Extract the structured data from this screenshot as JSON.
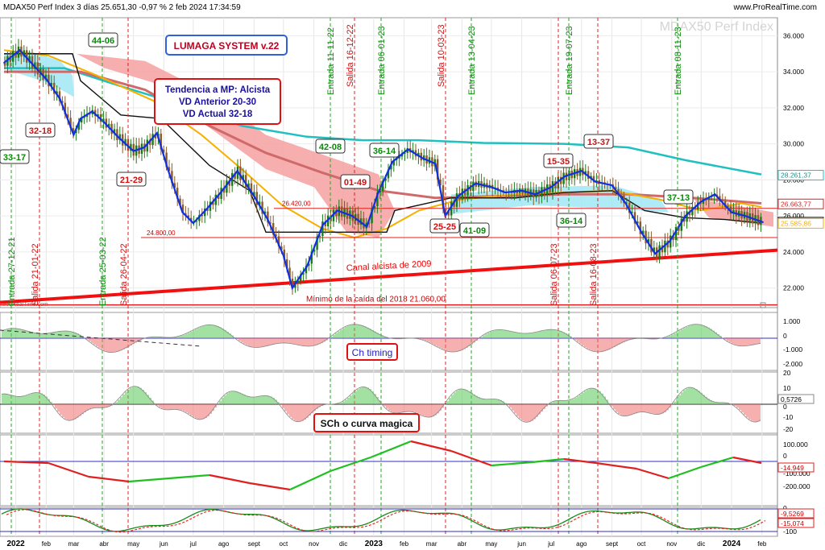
{
  "header": {
    "title": "MDAX50 Perf Index 3 días 25.651,30 -0,97 % 2 feb 2024 17:34:59",
    "source": "www.ProRealTime.com",
    "watermark": "MDAX50 Perf Index",
    "credit": "ProRealTime.com"
  },
  "chart_data": {
    "type": "line",
    "title": "LUMAGA SYSTEM v.22",
    "x_axis_labels": [
      "2022",
      "feb",
      "mar",
      "abr",
      "may",
      "jun",
      "jul",
      "ago",
      "sept",
      "oct",
      "nov",
      "dic",
      "2023",
      "feb",
      "mar",
      "abr",
      "may",
      "jun",
      "jul",
      "ago",
      "sept",
      "oct",
      "nov",
      "dic",
      "2024",
      "feb"
    ],
    "price_axis": {
      "ylim": [
        21000,
        37000
      ],
      "ticks": [
        "22.000",
        "24.000",
        "26.000",
        "28.000",
        "30.000",
        "32.000",
        "34.000",
        "36.000"
      ]
    },
    "price_series": {
      "name": "MDAX50 Perf Index",
      "x": [
        "2021-12-20",
        "2022-01-05",
        "2022-01-20",
        "2022-02-01",
        "2022-02-15",
        "2022-03-01",
        "2022-03-08",
        "2022-03-20",
        "2022-04-01",
        "2022-04-15",
        "2022-05-01",
        "2022-05-12",
        "2022-05-25",
        "2022-06-05",
        "2022-06-20",
        "2022-07-01",
        "2022-07-15",
        "2022-08-01",
        "2022-08-15",
        "2022-09-01",
        "2022-09-15",
        "2022-10-01",
        "2022-10-10",
        "2022-10-25",
        "2022-11-10",
        "2022-11-25",
        "2022-12-10",
        "2022-12-25",
        "2023-01-05",
        "2023-01-20",
        "2023-02-05",
        "2023-02-20",
        "2023-03-05",
        "2023-03-15",
        "2023-03-28",
        "2023-04-15",
        "2023-05-01",
        "2023-05-15",
        "2023-06-01",
        "2023-06-15",
        "2023-07-01",
        "2023-07-15",
        "2023-08-01",
        "2023-08-15",
        "2023-09-01",
        "2023-09-15",
        "2023-10-01",
        "2023-10-15",
        "2023-10-30",
        "2023-11-15",
        "2023-12-01",
        "2023-12-15",
        "2024-01-01",
        "2024-01-15",
        "2024-02-02"
      ],
      "values": [
        34500,
        35200,
        34300,
        33600,
        32500,
        30500,
        31400,
        31800,
        31200,
        30400,
        29600,
        29800,
        30600,
        28600,
        26200,
        25600,
        26400,
        27500,
        28500,
        27100,
        25800,
        23800,
        22000,
        23200,
        25500,
        26300,
        26000,
        25400,
        27200,
        29000,
        29700,
        29200,
        28900,
        26000,
        27100,
        27800,
        27600,
        27300,
        27400,
        27200,
        27600,
        28200,
        28500,
        27900,
        27700,
        26700,
        25100,
        23900,
        24600,
        26000,
        26800,
        27200,
        26200,
        26000,
        25651
      ]
    },
    "annotations": {
      "signal_labels": [
        "44-06",
        "32-18",
        "33-17",
        "21-29",
        "42-08",
        "01-49",
        "36-14",
        "25-25",
        "41-09",
        "36-14",
        "15-35",
        "13-37",
        "37-13"
      ],
      "entries": [
        "Entrada 27-12-21",
        "Entrada 25-03-22",
        "Entrada 11-11-22",
        "Entrada 06-01-23",
        "Entrada 13-04-23",
        "Entrada 19-07-23",
        "Entrada 08-11-23"
      ],
      "exits": [
        "Salida 21-01-22",
        "Salida 26-04-22",
        "Salida 16-12-22",
        "Salida 10-03-23",
        "Salida 06-07-23",
        "Salida 16-08-23"
      ],
      "trend_box": [
        "Tendencia a MP: Alcista",
        "VD Anterior 20-30",
        "VD Actual 32-18"
      ],
      "level_26420": "26.420,00",
      "level_24800": "24.800,00",
      "channel_label": "Canal alcista de 2009",
      "low_label": "Mínimo de la caída del 2018  21.060,00",
      "price_tags": [
        "28.261,37",
        "26.663,77",
        "25.651,30",
        "25.585,86"
      ]
    },
    "indicators": [
      {
        "name": "Ch timing",
        "ticks": [
          "1.000",
          "0",
          "-1.000",
          "-2.000"
        ]
      },
      {
        "name": "SCh o curva magica",
        "ticks": [
          "20",
          "10",
          "0",
          "-10",
          "-20"
        ],
        "last": "0,5726"
      },
      {
        "name": "",
        "ticks": [
          "100.000",
          "0",
          "-100.000",
          "-200.000"
        ],
        "last": "-14.949"
      },
      {
        "name": "",
        "ticks": [
          "0",
          "-100"
        ],
        "last": [
          "-9,5269",
          "-15,074"
        ]
      }
    ]
  }
}
